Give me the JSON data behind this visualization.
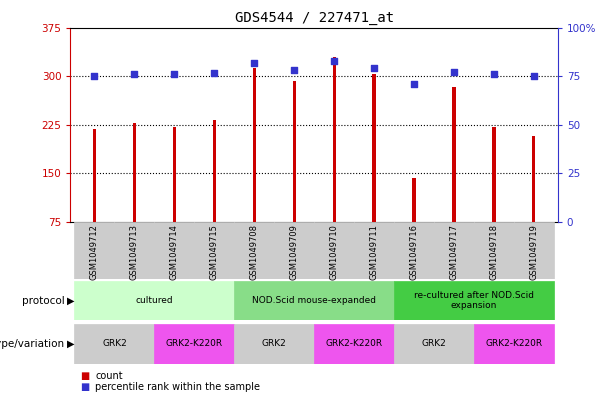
{
  "title": "GDS4544 / 227471_at",
  "samples": [
    "GSM1049712",
    "GSM1049713",
    "GSM1049714",
    "GSM1049715",
    "GSM1049708",
    "GSM1049709",
    "GSM1049710",
    "GSM1049711",
    "GSM1049716",
    "GSM1049717",
    "GSM1049718",
    "GSM1049719"
  ],
  "counts": [
    218,
    228,
    222,
    232,
    313,
    293,
    330,
    303,
    143,
    283,
    222,
    207
  ],
  "percentiles": [
    75,
    76,
    76,
    76.5,
    82,
    78,
    83,
    79,
    71,
    77,
    76,
    75
  ],
  "ylim_left": [
    75,
    375
  ],
  "ylim_right": [
    0,
    100
  ],
  "yticks_left": [
    75,
    150,
    225,
    300,
    375
  ],
  "yticks_right": [
    0,
    25,
    50,
    75,
    100
  ],
  "bar_color": "#cc0000",
  "dot_color": "#3333cc",
  "bar_width": 0.08,
  "protocol_groups": [
    {
      "label": "cultured",
      "start": 0,
      "end": 3,
      "color": "#ccffcc"
    },
    {
      "label": "NOD.Scid mouse-expanded",
      "start": 4,
      "end": 7,
      "color": "#88dd88"
    },
    {
      "label": "re-cultured after NOD.Scid\nexpansion",
      "start": 8,
      "end": 11,
      "color": "#44cc44"
    }
  ],
  "genotype_groups": [
    {
      "label": "GRK2",
      "start": 0,
      "end": 1,
      "color": "#cccccc"
    },
    {
      "label": "GRK2-K220R",
      "start": 2,
      "end": 3,
      "color": "#ee55ee"
    },
    {
      "label": "GRK2",
      "start": 4,
      "end": 5,
      "color": "#cccccc"
    },
    {
      "label": "GRK2-K220R",
      "start": 6,
      "end": 7,
      "color": "#ee55ee"
    },
    {
      "label": "GRK2",
      "start": 8,
      "end": 9,
      "color": "#cccccc"
    },
    {
      "label": "GRK2-K220R",
      "start": 10,
      "end": 11,
      "color": "#ee55ee"
    }
  ],
  "sample_bg_color": "#cccccc",
  "left_axis_color": "#cc0000",
  "right_axis_color": "#3333cc",
  "gridline_color": "#000000",
  "gridline_vals": [
    150,
    225,
    300
  ]
}
